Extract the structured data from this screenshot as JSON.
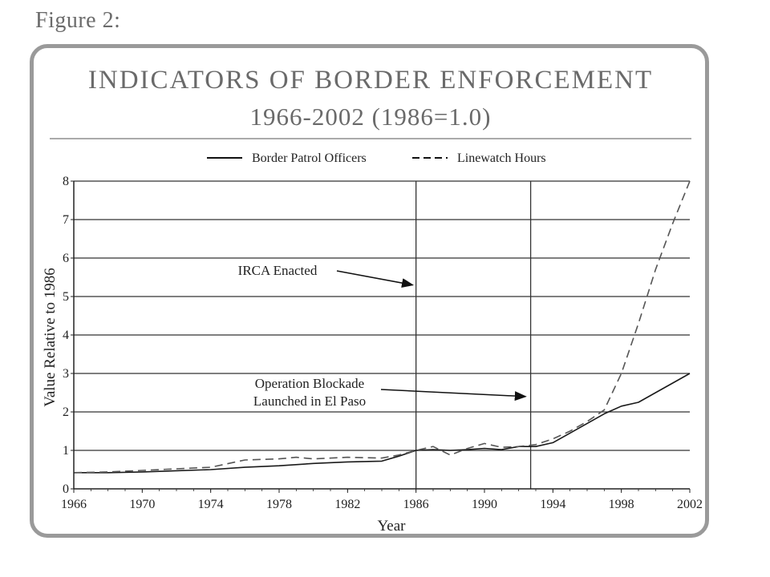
{
  "figure_label": "Figure 2:",
  "chart_data": {
    "type": "line",
    "title": "INDICATORS OF BORDER ENFORCEMENT",
    "subtitle": "1966-2002 (1986=1.0)",
    "xlabel": "Year",
    "ylabel": "Value Relative to 1986",
    "xlim": [
      1966,
      2002
    ],
    "ylim": [
      0,
      8
    ],
    "xticks": [
      "1966",
      "1970",
      "1974",
      "1978",
      "1982",
      "1986",
      "1990",
      "1994",
      "1998",
      "2002"
    ],
    "yticks": [
      "0",
      "1",
      "2",
      "3",
      "4",
      "5",
      "6",
      "7",
      "8"
    ],
    "grid": "horizontal",
    "legend_position": "top-center",
    "series": [
      {
        "name": "Border Patrol Officers",
        "style": "solid",
        "x": [
          1966,
          1968,
          1970,
          1972,
          1974,
          1976,
          1978,
          1980,
          1982,
          1984,
          1985,
          1986,
          1987,
          1988,
          1989,
          1990,
          1991,
          1992,
          1993,
          1994,
          1995,
          1996,
          1997,
          1998,
          1999,
          2000,
          2001,
          2002
        ],
        "y": [
          0.42,
          0.42,
          0.44,
          0.47,
          0.5,
          0.56,
          0.6,
          0.66,
          0.7,
          0.72,
          0.85,
          1.0,
          1.02,
          1.0,
          1.02,
          1.05,
          1.02,
          1.1,
          1.1,
          1.2,
          1.45,
          1.7,
          1.95,
          2.15,
          2.25,
          2.5,
          2.75,
          3.0
        ]
      },
      {
        "name": "Linewatch Hours",
        "style": "dashed",
        "x": [
          1966,
          1968,
          1970,
          1972,
          1974,
          1976,
          1978,
          1979,
          1980,
          1982,
          1984,
          1985,
          1986,
          1987,
          1988,
          1989,
          1990,
          1991,
          1992,
          1993,
          1994,
          1995,
          1996,
          1997,
          1998,
          1999,
          2000,
          2001,
          2002
        ],
        "y": [
          0.42,
          0.44,
          0.48,
          0.52,
          0.56,
          0.75,
          0.78,
          0.82,
          0.78,
          0.82,
          0.8,
          0.88,
          1.0,
          1.1,
          0.88,
          1.05,
          1.18,
          1.08,
          1.1,
          1.15,
          1.3,
          1.5,
          1.75,
          2.05,
          3.0,
          4.3,
          5.7,
          6.9,
          8.0
        ]
      }
    ],
    "vlines": [
      1986,
      1992.7
    ],
    "annotations": [
      {
        "text": [
          "IRCA Enacted"
        ],
        "points_to": [
          1985.9,
          5.3
        ]
      },
      {
        "text": [
          "Operation Blockade",
          "Launched in El Paso"
        ],
        "points_to": [
          1992.5,
          2.4
        ]
      }
    ],
    "colors": {
      "line": "#1a1a1a",
      "grid": "#333333",
      "axis": "#222222"
    }
  }
}
